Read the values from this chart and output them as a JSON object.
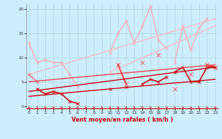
{
  "background_color": "#cceeff",
  "grid_color": "#aacccc",
  "xlabel": "Vent moyen/en rafales ( km/h )",
  "xlabel_fontsize": 6,
  "xlabel_color": "#cc0000",
  "x_values": [
    0,
    1,
    2,
    3,
    4,
    5,
    6,
    7,
    8,
    9,
    10,
    11,
    12,
    13,
    14,
    15,
    16,
    17,
    18,
    19,
    20,
    21,
    22,
    23
  ],
  "series": [
    {
      "name": "light_pink_1",
      "y": [
        13,
        9,
        9.5,
        9,
        9,
        6.5,
        4,
        null,
        null,
        null,
        null,
        null,
        null,
        null,
        null,
        null,
        null,
        null,
        null,
        null,
        null,
        null,
        null,
        null
      ],
      "color": "#ffaaaa",
      "lw": 1.0,
      "marker": "x",
      "ms": 3
    },
    {
      "name": "light_pink_2",
      "y": [
        null,
        null,
        null,
        null,
        null,
        null,
        null,
        null,
        null,
        null,
        11,
        15,
        17.5,
        13,
        16.5,
        20.5,
        13.5,
        12,
        null,
        null,
        null,
        null,
        null,
        null
      ],
      "color": "#ffaaaa",
      "lw": 1.0,
      "marker": "x",
      "ms": 3
    },
    {
      "name": "light_pink_3",
      "y": [
        null,
        null,
        null,
        null,
        null,
        null,
        null,
        null,
        null,
        null,
        null,
        null,
        null,
        null,
        null,
        null,
        null,
        null,
        9,
        16.5,
        11.5,
        16,
        18,
        null
      ],
      "color": "#ffaaaa",
      "lw": 1.0,
      "marker": "x",
      "ms": 3
    },
    {
      "name": "trend_light_1",
      "y": [
        6.5,
        null,
        null,
        null,
        null,
        null,
        null,
        null,
        null,
        null,
        null,
        null,
        null,
        null,
        null,
        null,
        null,
        null,
        null,
        null,
        null,
        null,
        null,
        18
      ],
      "color": "#ffbbbb",
      "lw": 1.0,
      "marker": "+",
      "ms": 3,
      "linestyle": "-"
    },
    {
      "name": "trend_light_2",
      "y": [
        null,
        null,
        null,
        null,
        null,
        null,
        null,
        null,
        null,
        null,
        7,
        null,
        null,
        null,
        null,
        null,
        null,
        null,
        null,
        null,
        null,
        null,
        null,
        16.5
      ],
      "color": "#ffbbbb",
      "lw": 1.0,
      "marker": "+",
      "ms": 3,
      "linestyle": "-"
    },
    {
      "name": "mid_pink",
      "y": [
        6.5,
        5,
        null,
        null,
        null,
        null,
        0.5,
        null,
        null,
        null,
        null,
        null,
        null,
        null,
        null,
        null,
        null,
        null,
        null,
        null,
        null,
        null,
        null,
        null
      ],
      "color": "#ff7777",
      "lw": 1.2,
      "marker": "x",
      "ms": 3,
      "linestyle": "-"
    },
    {
      "name": "dark_jagged",
      "y": [
        null,
        null,
        null,
        null,
        null,
        null,
        null,
        null,
        null,
        null,
        null,
        8.5,
        4.5,
        null,
        9,
        null,
        10.5,
        null,
        3.5,
        null,
        6.5,
        null,
        8.5,
        8
      ],
      "color": "#ff4444",
      "lw": 1.5,
      "marker": "x",
      "ms": 4,
      "linestyle": "-"
    },
    {
      "name": "dark_red_1",
      "y": [
        null,
        3.5,
        2.5,
        3,
        2.5,
        1,
        0.5,
        null,
        null,
        null,
        null,
        null,
        null,
        null,
        null,
        null,
        null,
        null,
        null,
        null,
        null,
        null,
        null,
        null
      ],
      "color": "#cc0000",
      "lw": 1.2,
      "marker": "x",
      "ms": 3,
      "linestyle": "-"
    },
    {
      "name": "dark_red_2",
      "y": [
        null,
        null,
        null,
        null,
        null,
        null,
        null,
        null,
        null,
        null,
        3.5,
        null,
        4,
        null,
        4.5,
        5.5,
        5,
        6,
        null,
        null,
        null,
        null,
        null,
        null
      ],
      "color": "#cc0000",
      "lw": 1.2,
      "marker": "x",
      "ms": 3,
      "linestyle": "-"
    },
    {
      "name": "dark_red_3",
      "y": [
        null,
        null,
        null,
        null,
        null,
        null,
        null,
        null,
        null,
        null,
        null,
        null,
        null,
        null,
        null,
        null,
        null,
        null,
        7,
        8,
        5,
        5,
        8,
        8
      ],
      "color": "#cc0000",
      "lw": 1.2,
      "marker": "x",
      "ms": 3,
      "linestyle": "-"
    },
    {
      "name": "trend_dark_1",
      "y": [
        3.0,
        null,
        null,
        null,
        null,
        null,
        null,
        null,
        null,
        null,
        null,
        null,
        null,
        null,
        null,
        null,
        null,
        null,
        null,
        null,
        null,
        null,
        null,
        8.0
      ],
      "color": "#cc0000",
      "lw": 1.0,
      "marker": null,
      "ms": 0,
      "linestyle": "-"
    },
    {
      "name": "trend_dark_2",
      "y": [
        2.0,
        null,
        null,
        null,
        null,
        null,
        null,
        null,
        null,
        null,
        null,
        null,
        null,
        null,
        null,
        null,
        null,
        null,
        null,
        null,
        null,
        null,
        null,
        5.5
      ],
      "color": "#cc0000",
      "lw": 1.0,
      "marker": null,
      "ms": 0,
      "linestyle": "-"
    },
    {
      "name": "medium_red_trend",
      "y": [
        5.0,
        null,
        null,
        null,
        null,
        null,
        null,
        null,
        null,
        null,
        null,
        null,
        null,
        null,
        null,
        null,
        null,
        null,
        null,
        null,
        null,
        null,
        null,
        8.5
      ],
      "color": "#ee4444",
      "lw": 1.0,
      "marker": null,
      "ms": 0,
      "linestyle": "-"
    }
  ],
  "ylim": [
    -0.5,
    21
  ],
  "xlim": [
    -0.3,
    23.3
  ],
  "yticks": [
    0,
    5,
    10,
    15,
    20
  ],
  "xticks": [
    0,
    1,
    2,
    3,
    4,
    5,
    6,
    7,
    8,
    9,
    10,
    11,
    12,
    13,
    14,
    15,
    16,
    17,
    18,
    19,
    20,
    21,
    22,
    23
  ],
  "tick_fontsize": 4.5,
  "arrow_angles_deg": [
    -45,
    -45,
    -45,
    -45,
    -45,
    -45,
    -45,
    -45,
    -45,
    -45,
    45,
    45,
    45,
    45,
    45,
    45,
    45,
    45,
    45,
    45,
    45,
    45,
    45,
    45
  ]
}
